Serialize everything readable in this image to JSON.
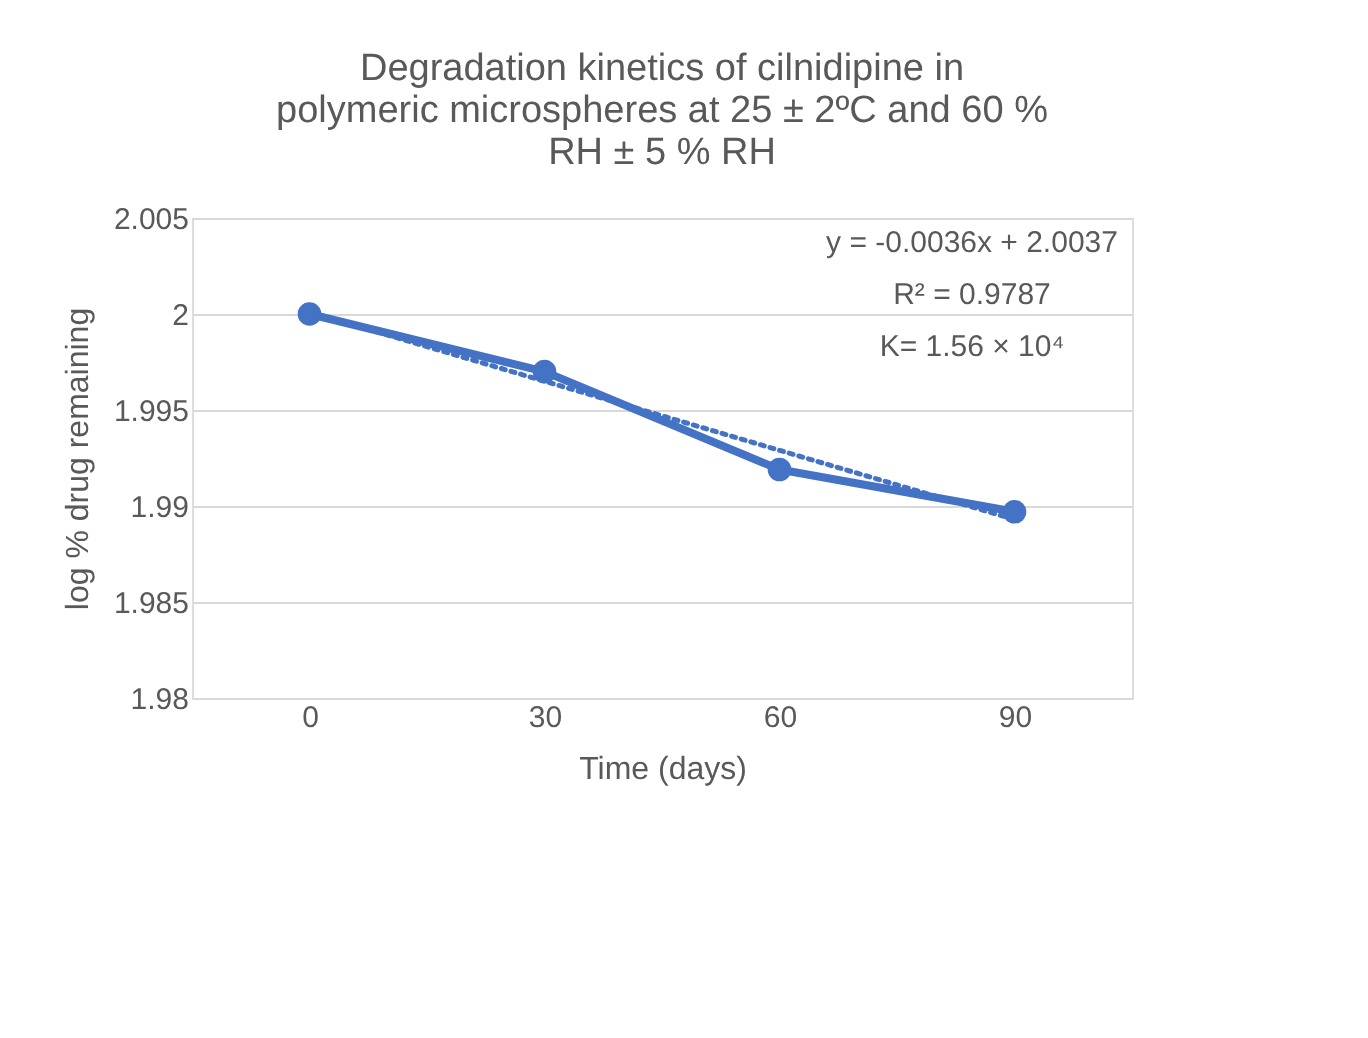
{
  "chart_data": {
    "type": "line",
    "title": "Degradation kinetics of cilnidipine in polymeric microspheres at 25 ± 2ºC and 60 % RH ± 5 % RH",
    "xlabel": "Time (days)",
    "ylabel": "log % drug remaining",
    "categories": [
      "0",
      "30",
      "60",
      "90"
    ],
    "series": [
      {
        "color": "#4472c4",
        "values": [
          2.0,
          1.997,
          1.9919,
          1.9897
        ],
        "marker": "circle",
        "line_style": "solid"
      },
      {
        "type": "line",
        "x": [
          "0",
          "30",
          "60",
          "90"
        ],
        "color": "#4472c4",
        "values": [
          2.0001,
          1.9965,
          1.9929,
          1.9893
        ],
        "marker": "none",
        "line_style": "dotted"
      }
    ],
    "ylim": [
      1.98,
      2.005
    ],
    "yticks": [
      1.98,
      1.985,
      1.99,
      1.995,
      2,
      2.005
    ],
    "grid": "y",
    "annotations": [
      "y = -0.0036x + 2.0037",
      "R² = 0.9787",
      "K= 1.56 × 10⁴"
    ]
  }
}
